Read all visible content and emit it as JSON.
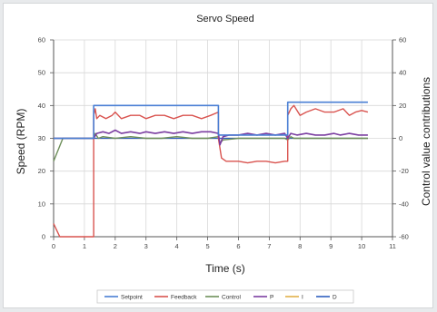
{
  "chart_data": {
    "type": "line",
    "title": "Servo Speed",
    "xlabel": "Time (s)",
    "ylabel": "Speed (RPM)",
    "y2label": "Control value contributions",
    "xlim": [
      0,
      11
    ],
    "ylim": [
      0,
      60
    ],
    "y2lim": [
      -60,
      60
    ],
    "xticks": [
      "0",
      "1",
      "2",
      "3",
      "4",
      "5",
      "6",
      "7",
      "8",
      "9",
      "10",
      "11"
    ],
    "yticks": [
      "0",
      "10",
      "20",
      "30",
      "40",
      "50",
      "60"
    ],
    "y2ticks": [
      "-60",
      "-40",
      "-20",
      "0",
      "20",
      "40",
      "60"
    ],
    "grid": true,
    "legend_position": "bottom",
    "series": [
      {
        "name": "Setpoint",
        "axis": "left",
        "color": "#4a7fd4",
        "x": [
          0,
          1.3,
          1.3,
          5.35,
          5.35,
          7.6,
          7.6,
          10.2
        ],
        "y": [
          30,
          30,
          40,
          40,
          31,
          31,
          41,
          41
        ]
      },
      {
        "name": "Feedback",
        "axis": "left",
        "color": "#d9534f",
        "x": [
          0,
          0.1,
          0.2,
          0.4,
          1.3,
          1.3,
          1.35,
          1.4,
          1.5,
          1.7,
          1.9,
          2.0,
          2.2,
          2.5,
          2.8,
          3.0,
          3.3,
          3.6,
          3.9,
          4.2,
          4.5,
          4.8,
          5.1,
          5.35,
          5.35,
          5.45,
          5.6,
          5.8,
          6.0,
          6.3,
          6.6,
          6.9,
          7.2,
          7.5,
          7.6,
          7.6,
          7.7,
          7.8,
          8.0,
          8.2,
          8.5,
          8.8,
          9.1,
          9.4,
          9.6,
          9.8,
          10.0,
          10.2
        ],
        "y": [
          4,
          2,
          0,
          0,
          0,
          37,
          39,
          36,
          37,
          36,
          37,
          38,
          36,
          37,
          37,
          36,
          37,
          37,
          36,
          37,
          37,
          36,
          37,
          38,
          30,
          24,
          23,
          23,
          23,
          22.5,
          23,
          23,
          22.5,
          23,
          23,
          37,
          39,
          40,
          37,
          38,
          39,
          38,
          38,
          39,
          37,
          38,
          38.5,
          38
        ]
      },
      {
        "name": "Control",
        "axis": "right",
        "color": "#6e8f5a",
        "x": [
          0,
          0.3,
          1.3,
          1.35,
          1.45,
          1.6,
          2.0,
          2.5,
          3.0,
          3.5,
          4.0,
          4.5,
          5.0,
          5.35,
          5.4,
          5.5,
          6.0,
          6.5,
          7.0,
          7.5,
          7.6,
          7.7,
          7.8,
          8.5,
          9.0,
          9.5,
          10.0,
          10.2
        ],
        "y": [
          -14,
          0,
          0,
          3,
          0,
          1,
          0,
          1,
          0,
          0,
          1,
          0,
          0,
          1,
          -3,
          -1,
          0,
          0,
          0,
          0,
          -1,
          1,
          0,
          0,
          0,
          0,
          0,
          0
        ]
      },
      {
        "name": "P",
        "axis": "right",
        "color": "#7b3ea1",
        "x": [
          0,
          1.3,
          1.4,
          1.6,
          1.8,
          2.0,
          2.2,
          2.5,
          2.8,
          3.0,
          3.3,
          3.6,
          3.9,
          4.2,
          4.5,
          4.8,
          5.1,
          5.35,
          5.4,
          5.5,
          5.7,
          6.0,
          6.3,
          6.6,
          6.9,
          7.2,
          7.5,
          7.6,
          7.7,
          7.9,
          8.2,
          8.5,
          8.8,
          9.1,
          9.3,
          9.6,
          9.9,
          10.2
        ],
        "y": [
          0,
          0,
          3,
          4,
          3,
          5,
          3,
          4,
          3,
          4,
          3,
          4,
          3,
          4,
          3,
          4,
          4,
          3,
          -4,
          1,
          2,
          2,
          3,
          2,
          3,
          2,
          3,
          0,
          3,
          2,
          3,
          2,
          2,
          3,
          2,
          3,
          2,
          2
        ]
      },
      {
        "name": "I",
        "axis": "right",
        "color": "#e1b049",
        "x": [
          0,
          10.2
        ],
        "y": [
          0,
          0
        ]
      },
      {
        "name": "D",
        "axis": "right",
        "color": "#2f5fc0",
        "x": [
          0,
          10.2
        ],
        "y": [
          0,
          0
        ]
      }
    ]
  }
}
